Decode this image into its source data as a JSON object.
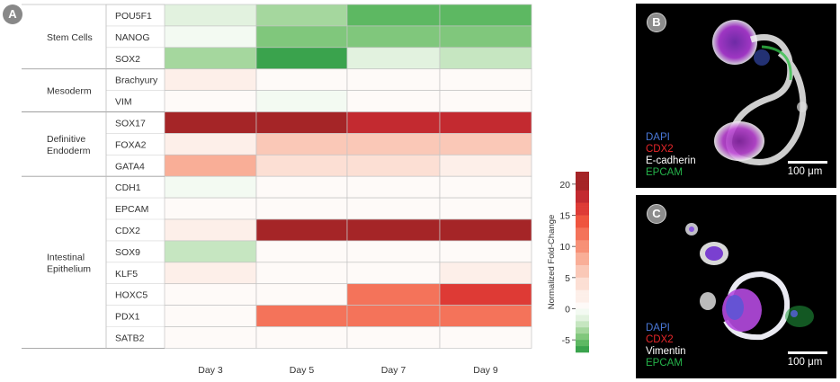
{
  "panel_labels": {
    "a": "A",
    "b": "B",
    "c": "C"
  },
  "chart_data": {
    "type": "heatmap",
    "columns": [
      "Day 3",
      "Day 5",
      "Day 7",
      "Day 9"
    ],
    "rows": [
      {
        "group": "Stem Cells",
        "gene": "POU5F1",
        "values": [
          -1.5,
          -3.5,
          -5.5,
          -5.5
        ]
      },
      {
        "group": "Stem Cells",
        "gene": "NANOG",
        "values": [
          -0.5,
          -4.5,
          -4.5,
          -4.5
        ]
      },
      {
        "group": "Stem Cells",
        "gene": "SOX2",
        "values": [
          -3.5,
          -6.5,
          -1.0,
          -2.0
        ]
      },
      {
        "group": "Mesoderm",
        "gene": "Brachyury",
        "values": [
          3.0,
          0.5,
          0.5,
          0.5
        ]
      },
      {
        "group": "Mesoderm",
        "gene": "VIM",
        "values": [
          0.5,
          -0.8,
          0.5,
          0.5
        ]
      },
      {
        "group": "Definitive Endoderm",
        "gene": "SOX17",
        "values": [
          20.5,
          20.5,
          17.5,
          18.5
        ]
      },
      {
        "group": "Definitive Endoderm",
        "gene": "FOXA2",
        "values": [
          2.5,
          6.5,
          6.5,
          6.5
        ]
      },
      {
        "group": "Definitive Endoderm",
        "gene": "GATA4",
        "values": [
          9.0,
          4.0,
          4.0,
          3.0
        ]
      },
      {
        "group": "Intestinal Epithelium",
        "gene": "CDH1",
        "values": [
          -0.8,
          0.0,
          0.5,
          0.5
        ]
      },
      {
        "group": "Intestinal Epithelium",
        "gene": "EPCAM",
        "values": [
          1.0,
          0.5,
          0.5,
          0.5
        ]
      },
      {
        "group": "Intestinal Epithelium",
        "gene": "CDX2",
        "values": [
          1.5,
          21.0,
          21.0,
          21.0
        ]
      },
      {
        "group": "Intestinal Epithelium",
        "gene": "SOX9",
        "values": [
          -2.5,
          0.0,
          0.5,
          0.5
        ]
      },
      {
        "group": "Intestinal Epithelium",
        "gene": "KLF5",
        "values": [
          2.0,
          0.5,
          1.0,
          2.0
        ]
      },
      {
        "group": "Intestinal Epithelium",
        "gene": "HOXC5",
        "values": [
          0.0,
          0.0,
          12.0,
          16.0
        ]
      },
      {
        "group": "Intestinal Epithelium",
        "gene": "PDX1",
        "values": [
          0.0,
          12.5,
          12.5,
          12.5
        ]
      },
      {
        "group": "Intestinal Epithelium",
        "gene": "SATB2",
        "values": [
          0.5,
          0.5,
          0.5,
          0.5
        ]
      }
    ],
    "groups": [
      {
        "label": [
          "Stem Cells"
        ],
        "rows": 3
      },
      {
        "label": [
          "Mesoderm"
        ],
        "rows": 2
      },
      {
        "label": [
          "Definitive",
          "Endoderm"
        ],
        "rows": 3
      },
      {
        "label": [
          "Intestinal",
          "Epithelium"
        ],
        "rows": 8
      }
    ],
    "colorbar": {
      "label": "Normalized Fold-Change",
      "ticks": [
        20,
        15,
        10,
        5,
        0,
        -5
      ],
      "range": [
        -7,
        22
      ],
      "positive_steps": [
        "#a52527",
        "#c32a30",
        "#de3a35",
        "#ef553f",
        "#f4735a",
        "#f79076",
        "#f9ae97",
        "#fac8b7",
        "#fcdfd4",
        "#fdefe9",
        "#fefaf8"
      ],
      "negative_steps": [
        "#f3faf2",
        "#e2f2df",
        "#c6e6c1",
        "#a5d79e",
        "#80c77c",
        "#5db862",
        "#3aa34d",
        "#228a3c"
      ]
    }
  },
  "panel_b": {
    "badge": "B",
    "stains": [
      {
        "text": "DAPI",
        "color": "#4a78d8"
      },
      {
        "text": "CDX2",
        "color": "#e6262a"
      },
      {
        "text": "E-cadherin",
        "color": "#ffffff"
      },
      {
        "text": "EPCAM",
        "color": "#25b24a"
      }
    ],
    "scale": "100 μm"
  },
  "panel_c": {
    "badge": "C",
    "stains": [
      {
        "text": "DAPI",
        "color": "#4a78d8"
      },
      {
        "text": "CDX2",
        "color": "#e6262a"
      },
      {
        "text": "Vimentin",
        "color": "#ffffff"
      },
      {
        "text": "EPCAM",
        "color": "#25b24a"
      }
    ],
    "scale": "100 μm"
  }
}
